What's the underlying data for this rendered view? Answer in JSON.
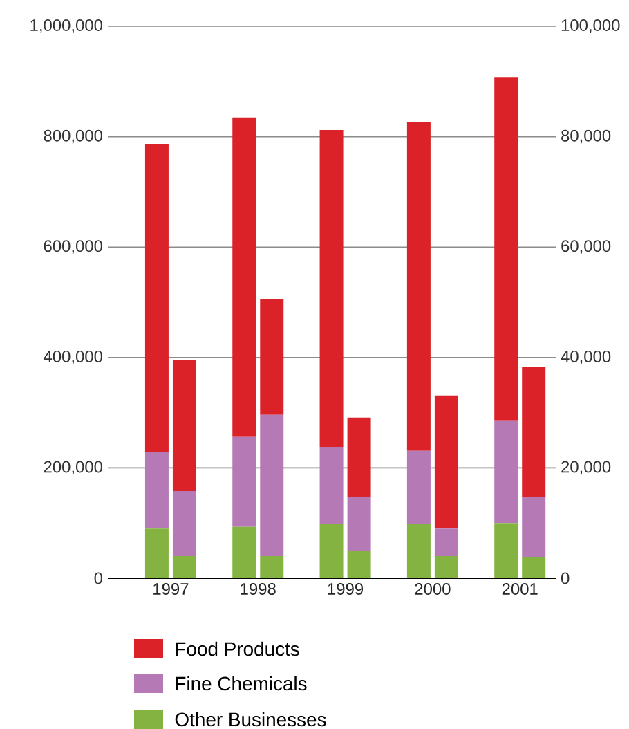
{
  "chart_data": {
    "type": "bar",
    "stacked": true,
    "grid": "y",
    "legend": "bottom",
    "categories": [
      "1997",
      "1998",
      "1999",
      "2000",
      "2001"
    ],
    "ylim": [
      0,
      1000000
    ],
    "yticks": [
      0,
      {
        "value": 200000,
        "label": "200,000"
      },
      {
        "value": 400000,
        "label": "400,000"
      },
      {
        "value": 600000,
        "label": "600,000"
      },
      {
        "value": 800000,
        "label": "800,000"
      },
      {
        "value": 1000000,
        "label": "1,000,000"
      }
    ],
    "y2lim": [
      0,
      100000
    ],
    "y2ticks": [
      0,
      {
        "value": 20000,
        "label": "20,000"
      },
      {
        "value": 40000,
        "label": "40,000"
      },
      {
        "value": 60000,
        "label": "60,000"
      },
      {
        "value": 80000,
        "label": "80,000"
      },
      {
        "value": 100000,
        "label": "100,000"
      }
    ],
    "series": [
      {
        "name": "Other Businesses",
        "color": "#84b341",
        "axis": "y",
        "values": [
          90000,
          93000,
          98000,
          98000,
          100000
        ]
      },
      {
        "name": "Fine Chemicals",
        "color": "#b57ab5",
        "axis": "y",
        "values": [
          138000,
          163000,
          140000,
          133000,
          186000
        ]
      },
      {
        "name": "Food Products",
        "color": "#db2229",
        "axis": "y",
        "values": [
          559000,
          579000,
          574000,
          596000,
          621000
        ]
      },
      {
        "color": "#84b341",
        "axis": "y2",
        "values": [
          4000,
          4000,
          5000,
          4000,
          3800
        ]
      },
      {
        "color": "#b57ab5",
        "axis": "y2",
        "values": [
          11800,
          25600,
          9800,
          5000,
          11000
        ]
      },
      {
        "color": "#db2229",
        "axis": "y2",
        "values": [
          23800,
          21000,
          14300,
          24100,
          23500
        ]
      }
    ]
  }
}
